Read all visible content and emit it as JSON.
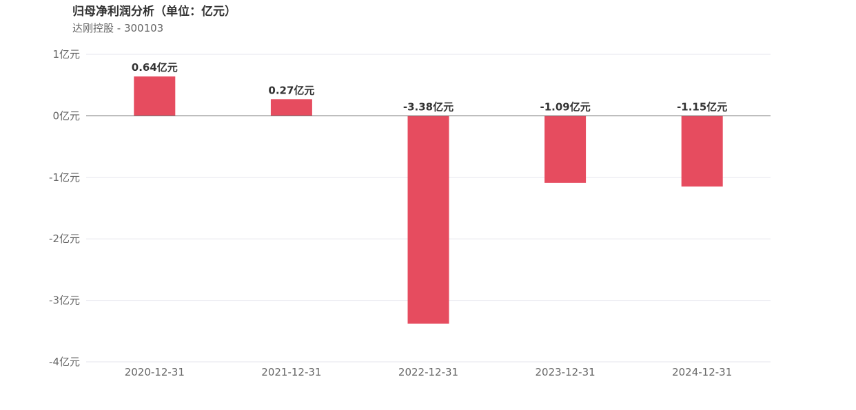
{
  "title": "归母净利润分析（单位：亿元）",
  "subtitle": "达刚控股 - 300103",
  "chart_data": {
    "type": "bar",
    "title": "归母净利润分析（单位：亿元）",
    "subtitle": "达刚控股 - 300103",
    "xlabel": "",
    "ylabel": "",
    "categories": [
      "2020-12-31",
      "2021-12-31",
      "2022-12-31",
      "2023-12-31",
      "2024-12-31"
    ],
    "values": [
      0.64,
      0.27,
      -3.38,
      -1.09,
      -1.15
    ],
    "data_labels": [
      "0.64亿元",
      "0.27亿元",
      "-3.38亿元",
      "-1.09亿元",
      "-1.15亿元"
    ],
    "ylim": [
      -4,
      1
    ],
    "yticks": [
      1,
      0,
      -1,
      -2,
      -3,
      -4
    ],
    "ytick_labels": [
      "1亿元",
      "0亿元",
      "-1亿元",
      "-2亿元",
      "-3亿元",
      "-4亿元"
    ],
    "grid": true,
    "bar_color": "#e64c5f",
    "grid_color": "#e6e6ee",
    "zero_line_color": "#666666"
  }
}
